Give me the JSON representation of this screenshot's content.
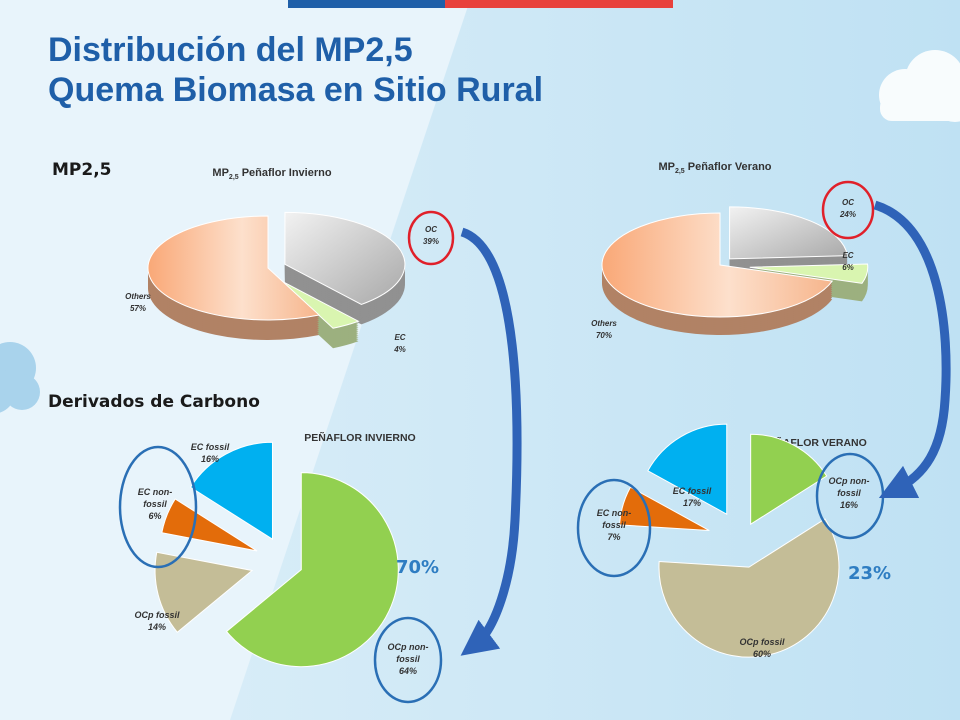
{
  "slide": {
    "title_line1": "Distribución del MP2,5",
    "title_line2": "Quema Biomasa en Sitio Rural",
    "section_mp25": "MP2,5",
    "section_carbon": "Derivados de Carbono",
    "pct_invierno": "70%",
    "pct_verano": "23%"
  },
  "colors": {
    "blue_bar": "#1f5fa8",
    "red_bar": "#e8413c",
    "title": "#1f5fa8",
    "highlight_circle_red": "#e0202a",
    "highlight_circle_blue": "#2a6fb5",
    "arrow": "#2f63b8"
  },
  "chart_data": [
    {
      "type": "pie",
      "style": "3d",
      "title": "MP2,5 Peñaflor  Invierno",
      "title_main": "MP",
      "title_sub": "2,5",
      "title_rest": " Peñaflor  Invierno",
      "slices": [
        {
          "label": "OC",
          "value": 39,
          "display": "39%",
          "color": "#c9c9c9"
        },
        {
          "label": "EC",
          "value": 4,
          "display": "4%",
          "color": "#d9f5b0"
        },
        {
          "label": "Others",
          "value": 57,
          "display": "57%",
          "color": "#f6b58c"
        }
      ],
      "highlight": "OC"
    },
    {
      "type": "pie",
      "style": "3d",
      "title": "MP2,5 Peñaflor  Verano",
      "title_main": "MP",
      "title_sub": "2,5",
      "title_rest": " Peñaflor  Verano",
      "slices": [
        {
          "label": "OC",
          "value": 24,
          "display": "24%",
          "color": "#c9c9c9"
        },
        {
          "label": "EC",
          "value": 6,
          "display": "6%",
          "color": "#d9f5b0"
        },
        {
          "label": "Others",
          "value": 70,
          "display": "70%",
          "color": "#f6b58c"
        }
      ],
      "highlight": "OC"
    },
    {
      "type": "pie",
      "style": "exploded",
      "title": "PEÑAFLOR INVIERNO",
      "slices": [
        {
          "label": "OCp non-fossil",
          "value": 64,
          "display": "64%",
          "color": "#92d050"
        },
        {
          "label": "OCp fossil",
          "value": 14,
          "display": "14%",
          "color": "#c4bd97"
        },
        {
          "label": "EC non-fossil",
          "value": 6,
          "display": "6%",
          "color": "#e36c0a"
        },
        {
          "label": "EC fossil",
          "value": 16,
          "display": "16%",
          "color": "#00b0f0"
        }
      ],
      "highlights": [
        "OCp non-fossil",
        "EC non-fossil"
      ]
    },
    {
      "type": "pie",
      "style": "exploded",
      "title": "PEÑAFLOR VERANO",
      "slices": [
        {
          "label": "OCp non-fossil",
          "value": 16,
          "display": "16%",
          "color": "#92d050"
        },
        {
          "label": "OCp fossil",
          "value": 60,
          "display": "60%",
          "color": "#c4bd97"
        },
        {
          "label": "EC non-fossil",
          "value": 7,
          "display": "7%",
          "color": "#e36c0a"
        },
        {
          "label": "EC fossil",
          "value": 17,
          "display": "17%",
          "color": "#00b0f0"
        }
      ],
      "highlights": [
        "OCp non-fossil",
        "EC non-fossil"
      ]
    }
  ]
}
